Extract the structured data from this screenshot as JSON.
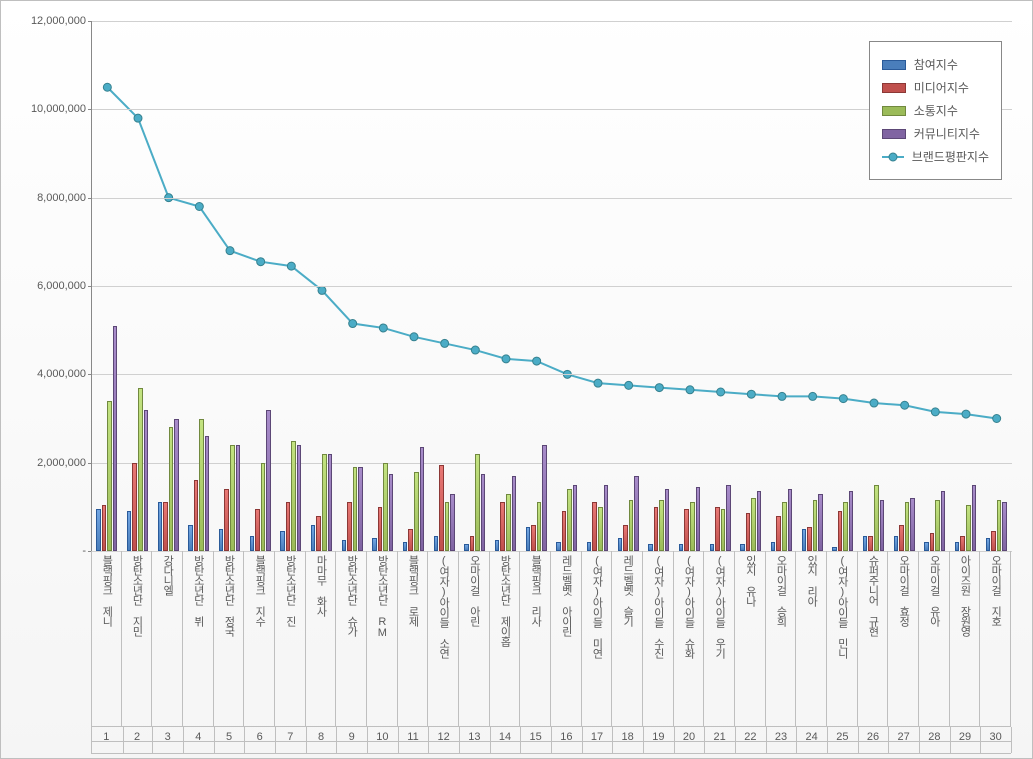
{
  "chart": {
    "type": "bar+line",
    "background_gradient": [
      "#ffffff",
      "#f5f5f5"
    ],
    "grid_color": "#d0d0d0",
    "axis_color": "#888888",
    "text_color": "#595959",
    "ylim": [
      0,
      12000000
    ],
    "ytick_step": 2000000,
    "ytick_labels": [
      "-",
      "2,000,000",
      "4,000,000",
      "6,000,000",
      "8,000,000",
      "10,000,000",
      "12,000,000"
    ],
    "series": [
      {
        "key": "participation",
        "label": "참여지수",
        "color": "#4a7ebb",
        "border": "#2a5a99",
        "type": "bar"
      },
      {
        "key": "media",
        "label": "미디어지수",
        "color": "#c0504d",
        "border": "#8c3836",
        "type": "bar"
      },
      {
        "key": "communication",
        "label": "소통지수",
        "color": "#9bbb59",
        "border": "#71893f",
        "type": "bar"
      },
      {
        "key": "community",
        "label": "커뮤니티지수",
        "color": "#8064a2",
        "border": "#5c4776",
        "type": "bar"
      },
      {
        "key": "brand",
        "label": "브랜드평판지수",
        "color": "#4bacc6",
        "border": "#35818f",
        "type": "line"
      }
    ],
    "bar_width_ratio": 0.18,
    "bar_group_gap_ratio": 0.1,
    "categories": [
      {
        "rank": 1,
        "name": "블랙핑크 제니",
        "participation": 950000,
        "media": 1050000,
        "communication": 3400000,
        "community": 5100000,
        "brand": 10500000
      },
      {
        "rank": 2,
        "name": "방탄소년단 지민",
        "participation": 900000,
        "media": 2000000,
        "communication": 3700000,
        "community": 3200000,
        "brand": 9800000
      },
      {
        "rank": 3,
        "name": "강다니엘",
        "participation": 1100000,
        "media": 1100000,
        "communication": 2800000,
        "community": 3000000,
        "brand": 8000000
      },
      {
        "rank": 4,
        "name": "방탄소년단 뷔",
        "participation": 600000,
        "media": 1600000,
        "communication": 3000000,
        "community": 2600000,
        "brand": 7800000
      },
      {
        "rank": 5,
        "name": "방탄소년단 정국",
        "participation": 500000,
        "media": 1400000,
        "communication": 2400000,
        "community": 2400000,
        "brand": 6800000
      },
      {
        "rank": 6,
        "name": "블랙핑크 지수",
        "participation": 350000,
        "media": 950000,
        "communication": 2000000,
        "community": 3200000,
        "brand": 6550000
      },
      {
        "rank": 7,
        "name": "방탄소년단 진",
        "participation": 450000,
        "media": 1100000,
        "communication": 2500000,
        "community": 2400000,
        "brand": 6450000
      },
      {
        "rank": 8,
        "name": "마마무 화사",
        "participation": 600000,
        "media": 800000,
        "communication": 2200000,
        "community": 2200000,
        "brand": 5900000
      },
      {
        "rank": 9,
        "name": "방탄소년단 슈가",
        "participation": 250000,
        "media": 1100000,
        "communication": 1900000,
        "community": 1900000,
        "brand": 5150000
      },
      {
        "rank": 10,
        "name": "방탄소년단 RM",
        "participation": 300000,
        "media": 1000000,
        "communication": 2000000,
        "community": 1750000,
        "brand": 5050000
      },
      {
        "rank": 11,
        "name": "블랙핑크 로제",
        "participation": 200000,
        "media": 500000,
        "communication": 1800000,
        "community": 2350000,
        "brand": 4850000
      },
      {
        "rank": 12,
        "name": "(여자)아이들 소연",
        "participation": 350000,
        "media": 1950000,
        "communication": 1100000,
        "community": 1300000,
        "brand": 4700000
      },
      {
        "rank": 13,
        "name": "오마이걸 아린",
        "participation": 150000,
        "media": 350000,
        "communication": 2200000,
        "community": 1750000,
        "brand": 4550000
      },
      {
        "rank": 14,
        "name": "방탄소년단 제이홉",
        "participation": 250000,
        "media": 1100000,
        "communication": 1300000,
        "community": 1700000,
        "brand": 4350000
      },
      {
        "rank": 15,
        "name": "블랙핑크 리사",
        "participation": 550000,
        "media": 600000,
        "communication": 1100000,
        "community": 2400000,
        "brand": 4300000
      },
      {
        "rank": 16,
        "name": "레드벨벳 아이린",
        "participation": 200000,
        "media": 900000,
        "communication": 1400000,
        "community": 1500000,
        "brand": 4000000
      },
      {
        "rank": 17,
        "name": "(여자)아이들 미연",
        "participation": 200000,
        "media": 1100000,
        "communication": 1000000,
        "community": 1500000,
        "brand": 3800000
      },
      {
        "rank": 18,
        "name": "레드벨벳 슬기",
        "participation": 300000,
        "media": 600000,
        "communication": 1150000,
        "community": 1700000,
        "brand": 3750000
      },
      {
        "rank": 19,
        "name": "(여자)아이들 수진",
        "participation": 150000,
        "media": 1000000,
        "communication": 1150000,
        "community": 1400000,
        "brand": 3700000
      },
      {
        "rank": 20,
        "name": "(여자)아이들 슈화",
        "participation": 150000,
        "media": 950000,
        "communication": 1100000,
        "community": 1450000,
        "brand": 3650000
      },
      {
        "rank": 21,
        "name": "(여자)아이들 우기",
        "participation": 150000,
        "media": 1000000,
        "communication": 950000,
        "community": 1500000,
        "brand": 3600000
      },
      {
        "rank": 22,
        "name": "있지 유나",
        "participation": 150000,
        "media": 850000,
        "communication": 1200000,
        "community": 1350000,
        "brand": 3550000
      },
      {
        "rank": 23,
        "name": "오마이걸 승희",
        "participation": 200000,
        "media": 800000,
        "communication": 1100000,
        "community": 1400000,
        "brand": 3500000
      },
      {
        "rank": 24,
        "name": "있지 리아",
        "participation": 500000,
        "media": 550000,
        "communication": 1150000,
        "community": 1300000,
        "brand": 3500000
      },
      {
        "rank": 25,
        "name": "(여자)아이들 민니",
        "participation": 100000,
        "media": 900000,
        "communication": 1100000,
        "community": 1350000,
        "brand": 3450000
      },
      {
        "rank": 26,
        "name": "슈퍼주니어 규현",
        "participation": 350000,
        "media": 350000,
        "communication": 1500000,
        "community": 1150000,
        "brand": 3350000
      },
      {
        "rank": 27,
        "name": "오마이걸 효정",
        "participation": 350000,
        "media": 600000,
        "communication": 1100000,
        "community": 1200000,
        "brand": 3300000
      },
      {
        "rank": 28,
        "name": "오마이걸 유아",
        "participation": 200000,
        "media": 400000,
        "communication": 1150000,
        "community": 1350000,
        "brand": 3150000
      },
      {
        "rank": 29,
        "name": "아이즈원 장원영",
        "participation": 200000,
        "media": 350000,
        "communication": 1050000,
        "community": 1500000,
        "brand": 3100000
      },
      {
        "rank": 30,
        "name": "오마이걸 지호",
        "participation": 300000,
        "media": 450000,
        "communication": 1150000,
        "community": 1100000,
        "brand": 3000000
      }
    ],
    "legend_position": "top-right",
    "font_size_axis": 11,
    "font_size_legend": 12
  }
}
